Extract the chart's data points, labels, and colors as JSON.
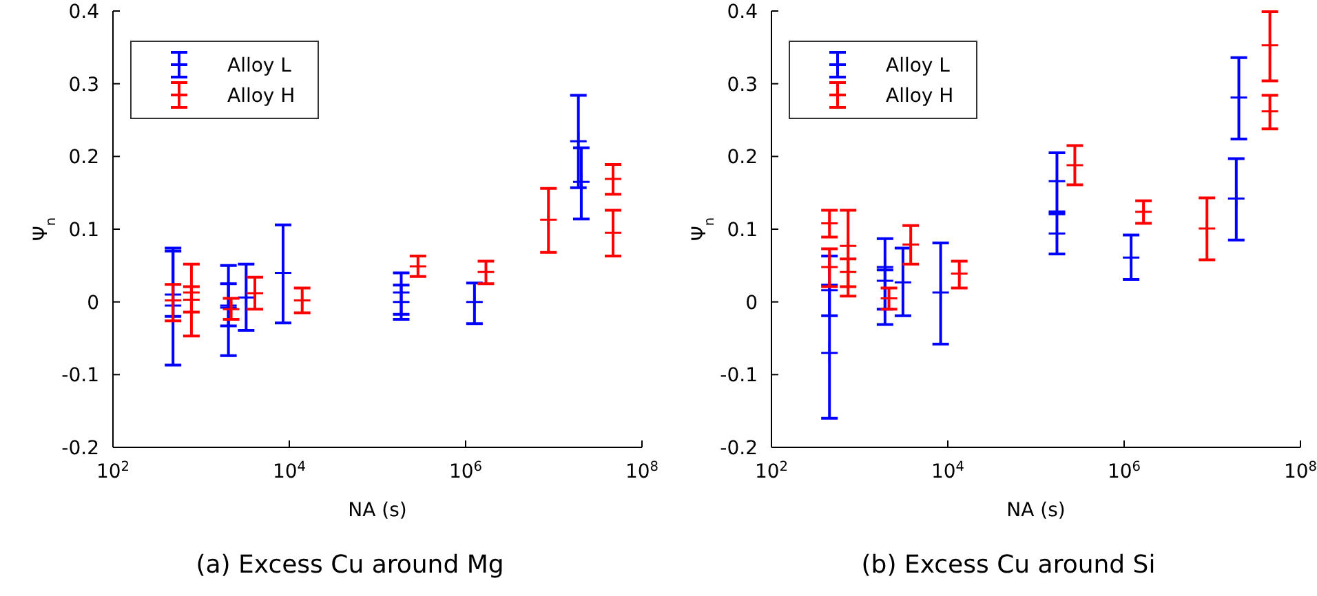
{
  "chart_data": [
    {
      "type": "scatter",
      "title": "(a) Excess Cu around Mg",
      "xlabel": "NA (s)",
      "ylabel": "Ψ$_{n}$",
      "log": "x",
      "marker": "cross",
      "legend": "top left",
      "xlim": [
        100,
        100000000
      ],
      "xticks": [
        {
          "value": 100,
          "label": "10$^{2}$"
        },
        {
          "value": 10000,
          "label": "10$^{4}$"
        },
        {
          "value": 1000000,
          "label": "10$^{6}$"
        },
        {
          "value": 100000000,
          "label": "10$^{8}$"
        }
      ],
      "ylim": [
        -0.2,
        0.4
      ],
      "yticks": [
        -0.2,
        -0.1,
        0,
        0.1,
        0.2,
        0.3,
        0.4
      ],
      "series": [
        {
          "name": "Alloy L",
          "color": "#0000ff",
          "x": [
            480,
            480,
            2040,
            2040,
            3240,
            8500,
            186000,
            186000,
            1260000,
            19000000,
            20500000
          ],
          "values": [
            -0.005,
            0.01,
            -0.008,
            -0.005,
            0.006,
            0.04,
            0.013,
            0,
            0,
            0.221,
            0.165
          ],
          "errors": [
            [
              -0.087,
              0.074
            ],
            [
              -0.02,
              0.07
            ],
            [
              -0.074,
              0.05
            ],
            [
              -0.033,
              0.025
            ],
            [
              -0.039,
              0.052
            ],
            [
              -0.029,
              0.106
            ],
            [
              -0.024,
              0.04
            ],
            [
              -0.017,
              0.023
            ],
            [
              -0.03,
              0.026
            ],
            [
              0.157,
              0.284
            ],
            [
              0.114,
              0.212
            ]
          ]
        },
        {
          "name": "Alloy H",
          "color": "#ff0000",
          "x": [
            480,
            776,
            776,
            2190,
            4070,
            14000,
            288000,
            1700000,
            8700000,
            47000000,
            47000000
          ],
          "values": [
            0.002,
            0.013,
            0.003,
            -0.01,
            0.012,
            0.002,
            0.049,
            0.041,
            0.113,
            0.169,
            0.095
          ],
          "errors": [
            [
              -0.026,
              0.024
            ],
            [
              -0.047,
              0.052
            ],
            [
              -0.014,
              0.021
            ],
            [
              -0.024,
              0.005
            ],
            [
              -0.01,
              0.034
            ],
            [
              -0.015,
              0.019
            ],
            [
              0.035,
              0.063
            ],
            [
              0.025,
              0.056
            ],
            [
              0.068,
              0.156
            ],
            [
              0.148,
              0.189
            ],
            [
              0.063,
              0.126
            ]
          ]
        }
      ]
    },
    {
      "type": "scatter",
      "title": "(b) Excess Cu around Si",
      "xlabel": "NA (s)",
      "ylabel": "Ψ$_{n}$",
      "log": "x",
      "marker": "cross",
      "legend": "top left",
      "xlim": [
        100,
        100000000
      ],
      "xticks": [
        {
          "value": 100,
          "label": "10$^{2}$"
        },
        {
          "value": 10000,
          "label": "10$^{4}$"
        },
        {
          "value": 1000000,
          "label": "10$^{6}$"
        },
        {
          "value": 100000000,
          "label": "10$^{8}$"
        }
      ],
      "ylim": [
        -0.2,
        0.4
      ],
      "yticks": [
        -0.2,
        -0.1,
        0,
        0.1,
        0.2,
        0.3,
        0.4
      ],
      "series": [
        {
          "name": "Alloy L",
          "color": "#0000ff",
          "x": [
            455,
            455,
            1940,
            1940,
            3100,
            8300,
            173000,
            173000,
            1200000,
            18700000,
            20000000
          ],
          "values": [
            -0.07,
            0.016,
            0.048,
            0.029,
            0.027,
            0.013,
            0.166,
            0.094,
            0.061,
            0.142,
            0.281
          ],
          "errors": [
            [
              -0.16,
              0.063
            ],
            [
              -0.019,
              0.023
            ],
            [
              -0.031,
              0.087
            ],
            [
              -0.01,
              0.044
            ],
            [
              -0.019,
              0.074
            ],
            [
              -0.058,
              0.081
            ],
            [
              0.124,
              0.205
            ],
            [
              0.066,
              0.121
            ],
            [
              0.031,
              0.092
            ],
            [
              0.085,
              0.197
            ],
            [
              0.224,
              0.336
            ]
          ]
        },
        {
          "name": "Alloy H",
          "color": "#ff0000",
          "x": [
            455,
            455,
            740,
            740,
            2150,
            3800,
            13500,
            276000,
            1660000,
            8700000,
            45000000,
            45000000
          ],
          "values": [
            0.108,
            0.048,
            0.077,
            0.041,
            0.005,
            0.079,
            0.039,
            0.188,
            0.124,
            0.101,
            0.353,
            0.262
          ],
          "errors": [
            [
              0.089,
              0.126
            ],
            [
              0.021,
              0.073
            ],
            [
              0.008,
              0.126
            ],
            [
              0.021,
              0.059
            ],
            [
              -0.01,
              0.019
            ],
            [
              0.052,
              0.105
            ],
            [
              0.019,
              0.056
            ],
            [
              0.161,
              0.215
            ],
            [
              0.108,
              0.139
            ],
            [
              0.058,
              0.143
            ],
            [
              0.304,
              0.399
            ],
            [
              0.238,
              0.284
            ]
          ]
        }
      ]
    }
  ]
}
